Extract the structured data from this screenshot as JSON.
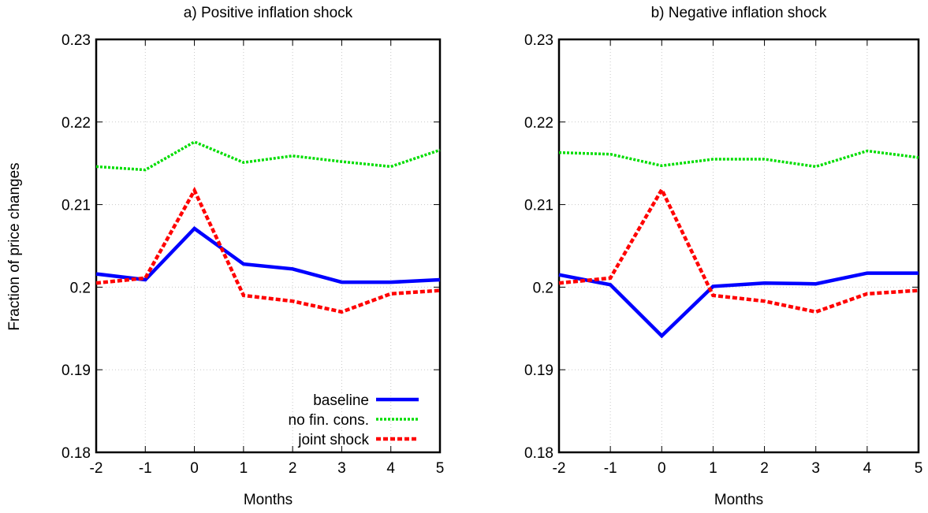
{
  "figure": {
    "shared_ylabel": "Fraction of price changes"
  },
  "chart_data": [
    {
      "type": "line",
      "title": "a) Positive inflation shock",
      "xlabel": "Months",
      "ylabel": "Fraction of price changes",
      "xlim": [
        -2,
        5
      ],
      "ylim": [
        0.18,
        0.23
      ],
      "x_ticks": [
        "-2",
        "-1",
        "0",
        "1",
        "2",
        "3",
        "4",
        "5"
      ],
      "y_ticks": [
        "0.18",
        "0.19",
        "0.2",
        "0.21",
        "0.22",
        "0.23"
      ],
      "grid": true,
      "legend": "bottom-right",
      "x": [
        -2,
        -1,
        0,
        1,
        2,
        3,
        4,
        5
      ],
      "series": [
        {
          "name": "baseline",
          "color": "#0000ff",
          "style": "solid",
          "values": [
            0.2016,
            0.2009,
            0.2071,
            0.2028,
            0.2022,
            0.2006,
            0.2006,
            0.2009
          ]
        },
        {
          "name": "no fin. cons.",
          "color": "#00dd00",
          "style": "dotted",
          "values": [
            0.2146,
            0.2142,
            0.2176,
            0.2151,
            0.2159,
            0.2152,
            0.2146,
            0.2166
          ]
        },
        {
          "name": "joint shock",
          "color": "#ff0000",
          "style": "dashed",
          "values": [
            0.2005,
            0.2011,
            0.2117,
            0.199,
            0.1983,
            0.197,
            0.1992,
            0.1996
          ]
        }
      ]
    },
    {
      "type": "line",
      "title": "b) Negative inflation shock",
      "xlabel": "Months",
      "ylabel": "",
      "xlim": [
        -2,
        5
      ],
      "ylim": [
        0.18,
        0.23
      ],
      "x_ticks": [
        "-2",
        "-1",
        "0",
        "1",
        "2",
        "3",
        "4",
        "5"
      ],
      "y_ticks": [
        "0.18",
        "0.19",
        "0.2",
        "0.21",
        "0.22",
        "0.23"
      ],
      "grid": true,
      "legend": "none",
      "x": [
        -2,
        -1,
        0,
        1,
        2,
        3,
        4,
        5
      ],
      "series": [
        {
          "name": "baseline",
          "color": "#0000ff",
          "style": "solid",
          "values": [
            0.2015,
            0.2003,
            0.1941,
            0.2001,
            0.2005,
            0.2004,
            0.2017,
            0.2017
          ]
        },
        {
          "name": "no fin. cons.",
          "color": "#00dd00",
          "style": "dotted",
          "values": [
            0.2163,
            0.2161,
            0.2147,
            0.2155,
            0.2155,
            0.2146,
            0.2165,
            0.2157
          ]
        },
        {
          "name": "joint shock",
          "color": "#ff0000",
          "style": "dashed",
          "values": [
            0.2005,
            0.2011,
            0.2118,
            0.199,
            0.1983,
            0.197,
            0.1992,
            0.1996
          ]
        }
      ]
    }
  ]
}
